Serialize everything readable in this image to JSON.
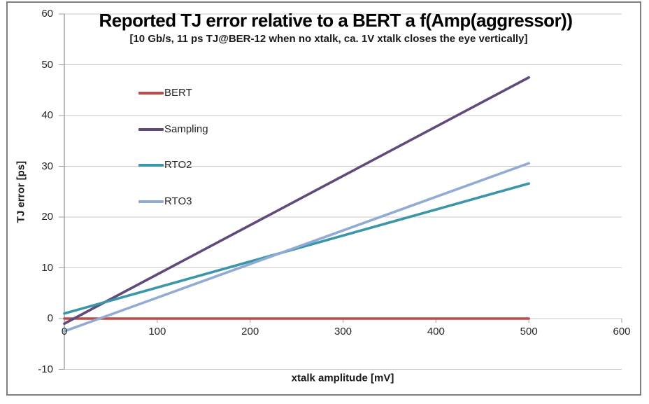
{
  "chart": {
    "title": "Reported TJ error relative to a BERT a f(Amp(aggressor))",
    "subtitle": "[10 Gb/s, 11 ps TJ@BER-12 when no xtalk, ca. 1V xtalk closes the eye vertically]",
    "x_axis_label": "xtalk amplitude [mV]",
    "y_axis_label": "TJ error [ps]"
  },
  "chart_data": {
    "type": "line",
    "title": "Reported TJ error relative to a BERT a f(Amp(aggressor))",
    "subtitle": "[10 Gb/s, 11 ps TJ@BER-12 when no xtalk, ca. 1V xtalk closes the eye vertically]",
    "xlabel": "xtalk amplitude [mV]",
    "ylabel": "TJ error [ps]",
    "xlim": [
      0,
      600
    ],
    "ylim": [
      -10,
      60
    ],
    "x_ticks": [
      0,
      100,
      200,
      300,
      400,
      500,
      600
    ],
    "y_ticks": [
      -10,
      0,
      10,
      20,
      30,
      40,
      50,
      60
    ],
    "grid": "horizontal-only",
    "legend_position": "inside-top-left",
    "series": [
      {
        "name": "BERT",
        "color": "#BE4B48",
        "x": [
          0,
          500
        ],
        "y": [
          0,
          0
        ]
      },
      {
        "name": "Sampling",
        "color": "#604A7B",
        "x": [
          0,
          500
        ],
        "y": [
          -1,
          47.5
        ]
      },
      {
        "name": "RTO2",
        "color": "#3A96A8",
        "x": [
          0,
          500
        ],
        "y": [
          1,
          26.6
        ]
      },
      {
        "name": "RTO3",
        "color": "#92ABD4",
        "x": [
          0,
          500
        ],
        "y": [
          -2.5,
          30.6
        ]
      }
    ]
  },
  "colors": {
    "frame_border": "#7F7F7F",
    "gridline": "#C9C9C9",
    "axis_line": "#9C9C9C",
    "tick_text": "#262626",
    "title_text": "#000000"
  }
}
